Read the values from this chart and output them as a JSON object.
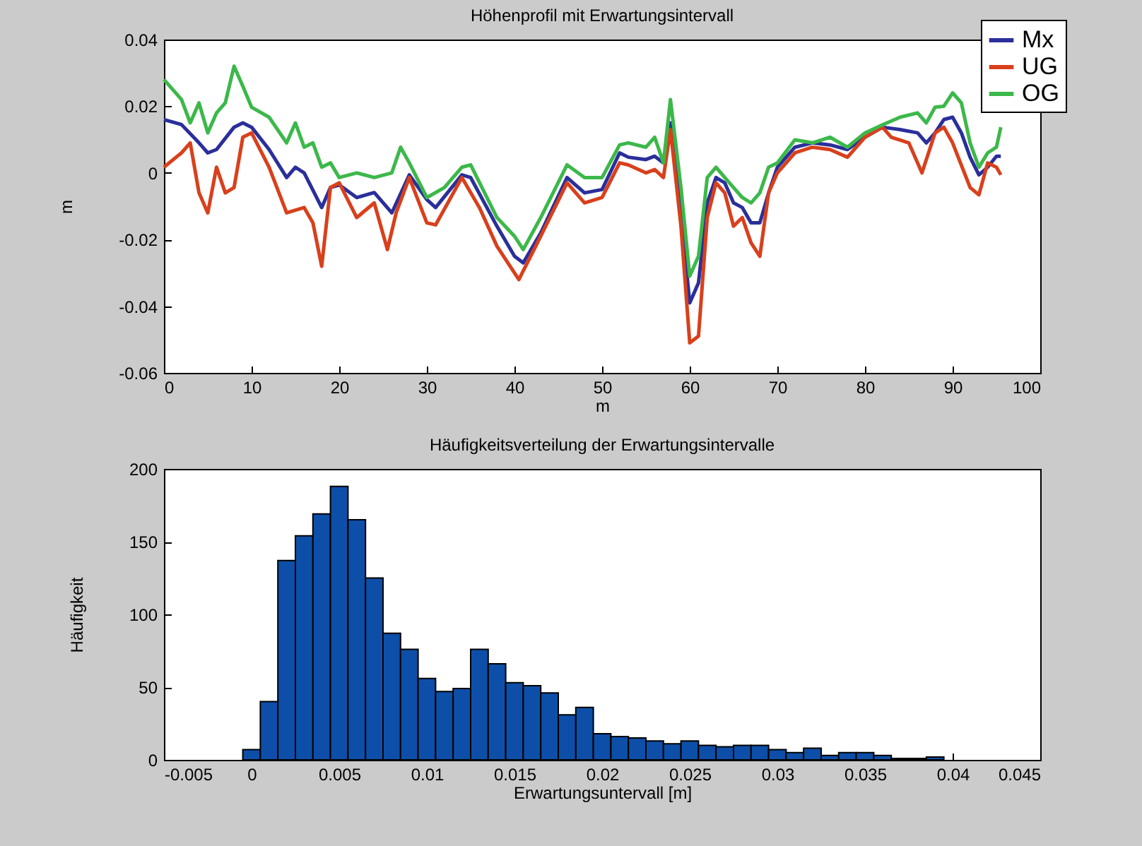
{
  "chart_data": [
    {
      "type": "line",
      "title": "Höhenprofil mit Erwartungsintervall",
      "xlabel": "m",
      "ylabel": "m",
      "xlim": [
        0,
        100
      ],
      "xticks": [
        0,
        10,
        20,
        30,
        40,
        50,
        60,
        70,
        80,
        90,
        100
      ],
      "ylim": [
        -0.06,
        0.04
      ],
      "yticks": [
        -0.06,
        -0.04,
        -0.02,
        0,
        0.02,
        0.04
      ],
      "grid": false,
      "legend": "top right",
      "marker": "none",
      "line_style": "solid",
      "series": [
        {
          "name": "Mx",
          "color": "#2a2f9a",
          "x": [
            0,
            2,
            4,
            5,
            6,
            8,
            9,
            10,
            12,
            14,
            15,
            16,
            18,
            19,
            20,
            22,
            24,
            26,
            28,
            30,
            31,
            34,
            35,
            38,
            40,
            41,
            43,
            46,
            48,
            50,
            52,
            53,
            55,
            56,
            57,
            57.8,
            59,
            60,
            61,
            62,
            63,
            64,
            65,
            66,
            67,
            68,
            69,
            70,
            72,
            74,
            76,
            78,
            80,
            82,
            84,
            86,
            87,
            88,
            89,
            90,
            91,
            92,
            93,
            94,
            95,
            95.5
          ],
          "values": [
            0.016,
            0.0145,
            0.009,
            0.006,
            0.007,
            0.0137,
            0.015,
            0.0137,
            0.007,
            -0.0014,
            0.0017,
            0,
            -0.0104,
            -0.0044,
            -0.0036,
            -0.0074,
            -0.0059,
            -0.012,
            -0.0006,
            -0.008,
            -0.0104,
            -0.0006,
            -0.0014,
            -0.016,
            -0.025,
            -0.027,
            -0.018,
            -0.0014,
            -0.006,
            -0.005,
            0.006,
            0.0047,
            0.004,
            0.005,
            0.003,
            0.015,
            -0.012,
            -0.039,
            -0.033,
            -0.009,
            -0.0014,
            -0.003,
            -0.009,
            -0.0104,
            -0.015,
            -0.015,
            -0.006,
            0.0017,
            0.0077,
            0.009,
            0.0084,
            0.007,
            0.0107,
            0.0137,
            0.013,
            0.012,
            0.009,
            0.012,
            0.016,
            0.0167,
            0.012,
            0.0047,
            -0.0006,
            0.0017,
            0.005,
            0.005
          ]
        },
        {
          "name": "UG",
          "color": "#d8401c",
          "x": [
            0,
            2,
            3,
            4,
            5,
            6,
            7,
            8,
            9,
            10,
            12,
            14,
            16,
            17,
            18,
            19,
            20,
            22,
            24,
            25.5,
            26.5,
            28,
            30,
            31,
            34,
            36,
            38,
            40.5,
            43,
            46,
            48,
            50,
            52,
            53,
            55,
            56,
            57,
            57.8,
            59,
            60,
            61,
            62,
            63,
            64,
            65,
            66,
            67,
            68,
            69,
            70,
            72,
            74,
            76,
            78,
            80,
            82,
            83,
            85,
            86.5,
            88,
            89,
            90,
            92,
            93,
            94,
            95,
            95.5
          ],
          "values": [
            0.0017,
            0.006,
            0.009,
            -0.006,
            -0.012,
            0.0017,
            -0.006,
            -0.0044,
            0.0107,
            0.012,
            0.0017,
            -0.012,
            -0.0104,
            -0.015,
            -0.028,
            -0.0044,
            -0.003,
            -0.0134,
            -0.009,
            -0.023,
            -0.012,
            -0.0014,
            -0.015,
            -0.0156,
            -0.0014,
            -0.0104,
            -0.022,
            -0.032,
            -0.019,
            -0.003,
            -0.009,
            -0.0074,
            0.003,
            0.0024,
            0,
            0.001,
            -0.0014,
            0.013,
            -0.016,
            -0.051,
            -0.049,
            -0.0134,
            -0.003,
            -0.006,
            -0.016,
            -0.0134,
            -0.021,
            -0.025,
            -0.006,
            0,
            0.006,
            0.0077,
            0.007,
            0.0047,
            0.0107,
            0.0137,
            0.0107,
            0.009,
            0,
            0.012,
            0.0137,
            0.009,
            -0.0044,
            -0.0066,
            0.003,
            0.0017,
            -0.0006
          ]
        },
        {
          "name": "OG",
          "color": "#3cb84a",
          "x": [
            0,
            2,
            3,
            4,
            5,
            6,
            7,
            8,
            9,
            10,
            12,
            14,
            15,
            16,
            17,
            18,
            19,
            20,
            22,
            24,
            26,
            27,
            28,
            30,
            32,
            34,
            35,
            38,
            40,
            41,
            43,
            46,
            48,
            50,
            52,
            53,
            55,
            56,
            57,
            57.8,
            59,
            60,
            61,
            62,
            63,
            64,
            65,
            66,
            67,
            68,
            69,
            70,
            72,
            74,
            76,
            78,
            80,
            82,
            84,
            86,
            87,
            88,
            89,
            90,
            91,
            92,
            93,
            94,
            95,
            95.5
          ],
          "values": [
            0.028,
            0.022,
            0.015,
            0.021,
            0.012,
            0.018,
            0.021,
            0.032,
            0.026,
            0.0197,
            0.0167,
            0.009,
            0.015,
            0.0077,
            0.009,
            0.0017,
            0.003,
            -0.0014,
            0,
            -0.0014,
            0,
            0.0077,
            0.003,
            -0.0074,
            -0.0044,
            0.0017,
            0.0024,
            -0.0134,
            -0.019,
            -0.023,
            -0.0134,
            0.0024,
            -0.0014,
            -0.0014,
            0.0084,
            0.009,
            0.0077,
            0.0107,
            0.003,
            0.022,
            -0.0044,
            -0.031,
            -0.025,
            -0.0014,
            0.0017,
            -0.0014,
            -0.0044,
            -0.0074,
            -0.009,
            -0.006,
            0.0017,
            0.003,
            0.0099,
            0.009,
            0.0107,
            0.0077,
            0.012,
            0.0144,
            0.0167,
            0.018,
            0.015,
            0.0197,
            0.02,
            0.024,
            0.021,
            0.009,
            0.0017,
            0.006,
            0.0077,
            0.0137
          ]
        }
      ]
    },
    {
      "type": "histogram",
      "title": "Häufigkeitsverteilung der Erwartungsintervalle",
      "xlabel": "Erwartungsuntervall [m]",
      "ylabel": "Häufigkeit",
      "xlim": [
        -0.005,
        0.045
      ],
      "xticks": [
        -0.005,
        0,
        0.005,
        0.01,
        0.015,
        0.02,
        0.025,
        0.03,
        0.035,
        0.04,
        0.045
      ],
      "ylim": [
        0,
        200
      ],
      "yticks": [
        0,
        50,
        100,
        150,
        200
      ],
      "grid": false,
      "color": "#0d4fa8",
      "bins": [
        -0.0005,
        0.0005,
        0.0015,
        0.0025,
        0.0035,
        0.0045,
        0.0055,
        0.0065,
        0.0075,
        0.0085,
        0.0095,
        0.0105,
        0.0115,
        0.0125,
        0.0135,
        0.0145,
        0.0155,
        0.0165,
        0.0175,
        0.0185,
        0.0195,
        0.0205,
        0.0215,
        0.0225,
        0.0235,
        0.0245,
        0.0255,
        0.0265,
        0.0275,
        0.0285,
        0.0295,
        0.0305,
        0.0315,
        0.0325,
        0.0335,
        0.0345,
        0.0355,
        0.0365,
        0.0375,
        0.0385,
        0.0395
      ],
      "values": [
        7,
        40,
        137,
        154,
        169,
        188,
        165,
        125,
        87,
        76,
        56,
        47,
        49,
        76,
        66,
        53,
        51,
        46,
        31,
        36,
        18,
        16,
        15,
        13,
        11,
        13,
        10,
        9,
        10,
        10,
        7,
        5,
        8,
        3,
        5,
        5,
        3,
        1,
        1,
        2
      ]
    }
  ]
}
